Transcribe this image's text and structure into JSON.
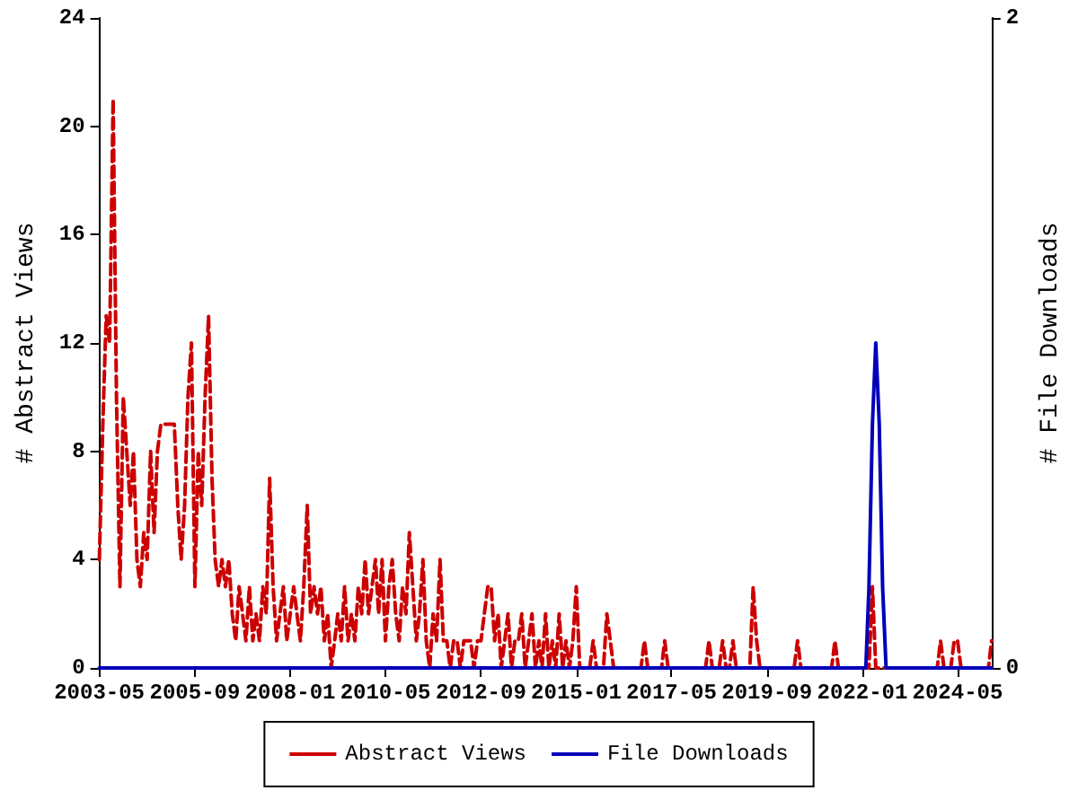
{
  "chart_data": {
    "type": "line",
    "ylabel": "# Abstract Views",
    "y2label": "# File Downloads",
    "legend": "bottom",
    "grid": false,
    "marker": "none",
    "xlim": [
      "2003-05",
      "2025-03"
    ],
    "xticks": [
      "2003-05",
      "2005-09",
      "2008-01",
      "2010-05",
      "2012-09",
      "2015-01",
      "2017-05",
      "2019-09",
      "2022-01",
      "2024-05"
    ],
    "ylim": [
      0,
      24
    ],
    "yticks": [
      0,
      4,
      8,
      12,
      16,
      20,
      24
    ],
    "y2lim": [
      0,
      2
    ],
    "y2ticks": [
      0,
      2
    ],
    "x": [
      "2003-05",
      "2003-06",
      "2003-07",
      "2003-08",
      "2003-09",
      "2003-10",
      "2003-11",
      "2003-12",
      "2004-01",
      "2004-02",
      "2004-03",
      "2004-04",
      "2004-05",
      "2004-06",
      "2004-07",
      "2004-08",
      "2004-09",
      "2004-10",
      "2004-11",
      "2004-12",
      "2005-01",
      "2005-02",
      "2005-03",
      "2005-04",
      "2005-05",
      "2005-06",
      "2005-07",
      "2005-08",
      "2005-09",
      "2005-10",
      "2005-11",
      "2005-12",
      "2006-01",
      "2006-02",
      "2006-03",
      "2006-04",
      "2006-05",
      "2006-06",
      "2006-07",
      "2006-08",
      "2006-09",
      "2006-10",
      "2006-11",
      "2006-12",
      "2007-01",
      "2007-02",
      "2007-03",
      "2007-04",
      "2007-05",
      "2007-06",
      "2007-07",
      "2007-08",
      "2007-09",
      "2007-10",
      "2007-11",
      "2007-12",
      "2008-01",
      "2008-02",
      "2008-03",
      "2008-04",
      "2008-05",
      "2008-06",
      "2008-07",
      "2008-08",
      "2008-09",
      "2008-10",
      "2008-11",
      "2008-12",
      "2009-01",
      "2009-02",
      "2009-03",
      "2009-04",
      "2009-05",
      "2009-06",
      "2009-07",
      "2009-08",
      "2009-09",
      "2009-10",
      "2009-11",
      "2009-12",
      "2010-01",
      "2010-02",
      "2010-03",
      "2010-04",
      "2010-05",
      "2010-06",
      "2010-07",
      "2010-08",
      "2010-09",
      "2010-10",
      "2010-11",
      "2010-12",
      "2011-01",
      "2011-02",
      "2011-03",
      "2011-04",
      "2011-05",
      "2011-06",
      "2011-07",
      "2011-08",
      "2011-09",
      "2011-10",
      "2011-11",
      "2011-12",
      "2012-01",
      "2012-02",
      "2012-03",
      "2012-04",
      "2012-05",
      "2012-06",
      "2012-07",
      "2012-08",
      "2012-09",
      "2012-10",
      "2012-11",
      "2012-12",
      "2013-01",
      "2013-02",
      "2013-03",
      "2013-04",
      "2013-05",
      "2013-06",
      "2013-07",
      "2013-08",
      "2013-09",
      "2013-10",
      "2013-11",
      "2013-12",
      "2014-01",
      "2014-02",
      "2014-03",
      "2014-04",
      "2014-05",
      "2014-06",
      "2014-07",
      "2014-08",
      "2014-09",
      "2014-10",
      "2014-11",
      "2014-12",
      "2015-01",
      "2015-02",
      "2015-03",
      "2015-04",
      "2015-05",
      "2015-06",
      "2015-07",
      "2015-08",
      "2015-09",
      "2015-10",
      "2015-11",
      "2015-12",
      "2016-01",
      "2016-02",
      "2016-03",
      "2016-04",
      "2016-05",
      "2016-06",
      "2016-07",
      "2016-08",
      "2016-09",
      "2016-10",
      "2016-11",
      "2016-12",
      "2017-01",
      "2017-02",
      "2017-03",
      "2017-04",
      "2017-05",
      "2017-06",
      "2017-07",
      "2017-08",
      "2017-09",
      "2017-10",
      "2017-11",
      "2017-12",
      "2018-01",
      "2018-02",
      "2018-03",
      "2018-04",
      "2018-05",
      "2018-06",
      "2018-07",
      "2018-08",
      "2018-09",
      "2018-10",
      "2018-11",
      "2018-12",
      "2019-01",
      "2019-02",
      "2019-03",
      "2019-04",
      "2019-05",
      "2019-06",
      "2019-07",
      "2019-08",
      "2019-09",
      "2019-10",
      "2019-11",
      "2019-12",
      "2020-01",
      "2020-02",
      "2020-03",
      "2020-04",
      "2020-05",
      "2020-06",
      "2020-07",
      "2020-08",
      "2020-09",
      "2020-10",
      "2020-11",
      "2020-12",
      "2021-01",
      "2021-02",
      "2021-03",
      "2021-04",
      "2021-05",
      "2021-06",
      "2021-07",
      "2021-08",
      "2021-09",
      "2021-10",
      "2021-11",
      "2021-12",
      "2022-01",
      "2022-02",
      "2022-03",
      "2022-04",
      "2022-05",
      "2022-06",
      "2022-07",
      "2022-08",
      "2022-09",
      "2022-10",
      "2022-11",
      "2022-12",
      "2023-01",
      "2023-02",
      "2023-03",
      "2023-04",
      "2023-05",
      "2023-06",
      "2023-07",
      "2023-08",
      "2023-09",
      "2023-10",
      "2023-11",
      "2023-12",
      "2024-01",
      "2024-02",
      "2024-03",
      "2024-04",
      "2024-05",
      "2024-06",
      "2024-07",
      "2024-08",
      "2024-09",
      "2024-10",
      "2024-11",
      "2024-12",
      "2025-01",
      "2025-02",
      "2025-03"
    ],
    "series": [
      {
        "name": "Abstract Views",
        "color": "#cc0000",
        "line_style": "dashed",
        "values": [
          4,
          9,
          13,
          12,
          21,
          10,
          3,
          10,
          8,
          6,
          8,
          4,
          3,
          5,
          4,
          8,
          5,
          8,
          9,
          9,
          9,
          9,
          9,
          6,
          4,
          6,
          10,
          12,
          3,
          8,
          6,
          10,
          13,
          7,
          4,
          3,
          4,
          3,
          4,
          2,
          1,
          3,
          2,
          1,
          3,
          1,
          2,
          1,
          3,
          2,
          7,
          3,
          1,
          2,
          3,
          1,
          2,
          3,
          2,
          1,
          3,
          6,
          2,
          3,
          2,
          3,
          1,
          2,
          0,
          1,
          2,
          1,
          3,
          1,
          2,
          1,
          3,
          2,
          4,
          2,
          3,
          4,
          2,
          4,
          1,
          3,
          4,
          2,
          1,
          3,
          2,
          5,
          3,
          1,
          2,
          4,
          1,
          0,
          2,
          1,
          4,
          1,
          1,
          0,
          1,
          1,
          0,
          1,
          1,
          1,
          0,
          1,
          1,
          2,
          3,
          3,
          1,
          2,
          0,
          1,
          2,
          0,
          1,
          1,
          2,
          0,
          1,
          2,
          0,
          1,
          0,
          2,
          0,
          1,
          0,
          2,
          0,
          1,
          0,
          1,
          3,
          0,
          0,
          0,
          0,
          1,
          0,
          0,
          0,
          2,
          1,
          0,
          0,
          0,
          0,
          0,
          0,
          0,
          0,
          0,
          1,
          0,
          0,
          0,
          0,
          0,
          1,
          0,
          0,
          0,
          0,
          0,
          0,
          0,
          0,
          0,
          0,
          0,
          0,
          1,
          0,
          0,
          0,
          1,
          0,
          0,
          1,
          0,
          0,
          0,
          0,
          0,
          3,
          1,
          0,
          0,
          0,
          0,
          0,
          0,
          0,
          0,
          0,
          0,
          0,
          1,
          0,
          0,
          0,
          0,
          0,
          0,
          0,
          0,
          0,
          0,
          1,
          0,
          0,
          0,
          0,
          0,
          0,
          0,
          0,
          0,
          0,
          3,
          0,
          0,
          0,
          0,
          0,
          0,
          0,
          0,
          0,
          0,
          0,
          0,
          0,
          0,
          0,
          0,
          0,
          0,
          0,
          1,
          0,
          0,
          0,
          1,
          1,
          0,
          0,
          0,
          0,
          0,
          0,
          0,
          0,
          0,
          1
        ]
      },
      {
        "name": "File Downloads",
        "color": "#0000bb",
        "line_style": "solid",
        "axis": "y2",
        "values": [
          0,
          0,
          0,
          0,
          0,
          0,
          0,
          0,
          0,
          0,
          0,
          0,
          0,
          0,
          0,
          0,
          0,
          0,
          0,
          0,
          0,
          0,
          0,
          0,
          0,
          0,
          0,
          0,
          0,
          0,
          0,
          0,
          0,
          0,
          0,
          0,
          0,
          0,
          0,
          0,
          0,
          0,
          0,
          0,
          0,
          0,
          0,
          0,
          0,
          0,
          0,
          0,
          0,
          0,
          0,
          0,
          0,
          0,
          0,
          0,
          0,
          0,
          0,
          0,
          0,
          0,
          0,
          0,
          0,
          0,
          0,
          0,
          0,
          0,
          0,
          0,
          0,
          0,
          0,
          0,
          0,
          0,
          0,
          0,
          0,
          0,
          0,
          0,
          0,
          0,
          0,
          0,
          0,
          0,
          0,
          0,
          0,
          0,
          0,
          0,
          0,
          0,
          0,
          0,
          0,
          0,
          0,
          0,
          0,
          0,
          0,
          0,
          0,
          0,
          0,
          0,
          0,
          0,
          0,
          0,
          0,
          0,
          0,
          0,
          0,
          0,
          0,
          0,
          0,
          0,
          0,
          0,
          0,
          0,
          0,
          0,
          0,
          0,
          0,
          0,
          0,
          0,
          0,
          0,
          0,
          0,
          0,
          0,
          0,
          0,
          0,
          0,
          0,
          0,
          0,
          0,
          0,
          0,
          0,
          0,
          0,
          0,
          0,
          0,
          0,
          0,
          0,
          0,
          0,
          0,
          0,
          0,
          0,
          0,
          0,
          0,
          0,
          0,
          0,
          0,
          0,
          0,
          0,
          0,
          0,
          0,
          0,
          0,
          0,
          0,
          0,
          0,
          0,
          0,
          0,
          0,
          0,
          0,
          0,
          0,
          0,
          0,
          0,
          0,
          0,
          0,
          0,
          0,
          0,
          0,
          0,
          0,
          0,
          0,
          0,
          0,
          0,
          0,
          0,
          0,
          0,
          0,
          0,
          0,
          0,
          0,
          0.25,
          0.75,
          1,
          0.75,
          0.25,
          0,
          0,
          0,
          0,
          0,
          0,
          0,
          0,
          0,
          0,
          0,
          0,
          0,
          0,
          0,
          0,
          0,
          0,
          0,
          0,
          0,
          0,
          0,
          0,
          0,
          0,
          0,
          0,
          0,
          0,
          0,
          0
        ]
      }
    ]
  }
}
